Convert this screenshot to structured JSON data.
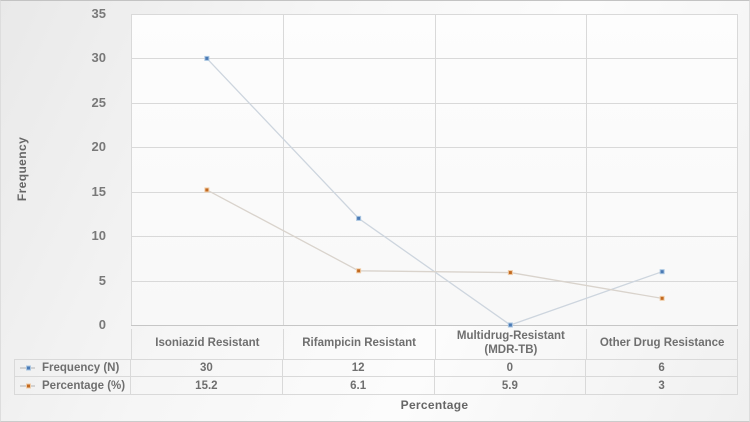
{
  "chart_data": {
    "type": "line",
    "title": "",
    "xlabel": "Percentage",
    "ylabel": "Frequency",
    "categories": [
      "Isoniazid Resistant",
      "Rifampicin Resistant",
      "Multidrug-Resistant (MDR-TB)",
      "Other Drug Resistance"
    ],
    "series": [
      {
        "name": "Frequency (N)",
        "values": [
          30,
          12,
          0,
          6
        ],
        "marker_color": "#4a7ab5",
        "marker_rim": "#aac6e1",
        "line_color": "#cdd5de"
      },
      {
        "name": "Percentage (%)",
        "values": [
          15.2,
          6.1,
          5.9,
          3
        ],
        "marker_color": "#c2691f",
        "marker_rim": "#f0cda9",
        "line_color": "#d9d3cc"
      }
    ],
    "ylim": [
      0,
      35
    ],
    "yticks": [
      0,
      5,
      10,
      15,
      20,
      25,
      30,
      35
    ],
    "grid": "horizontal gridlines with vertical category separators",
    "legend_position": "table-left"
  },
  "colors": {
    "grid": "#d9d9d9",
    "axis": "#c6c6c6",
    "label_text": "#6f6f6f",
    "tick_text": "#797979",
    "table_border": "#d9d9d9"
  }
}
